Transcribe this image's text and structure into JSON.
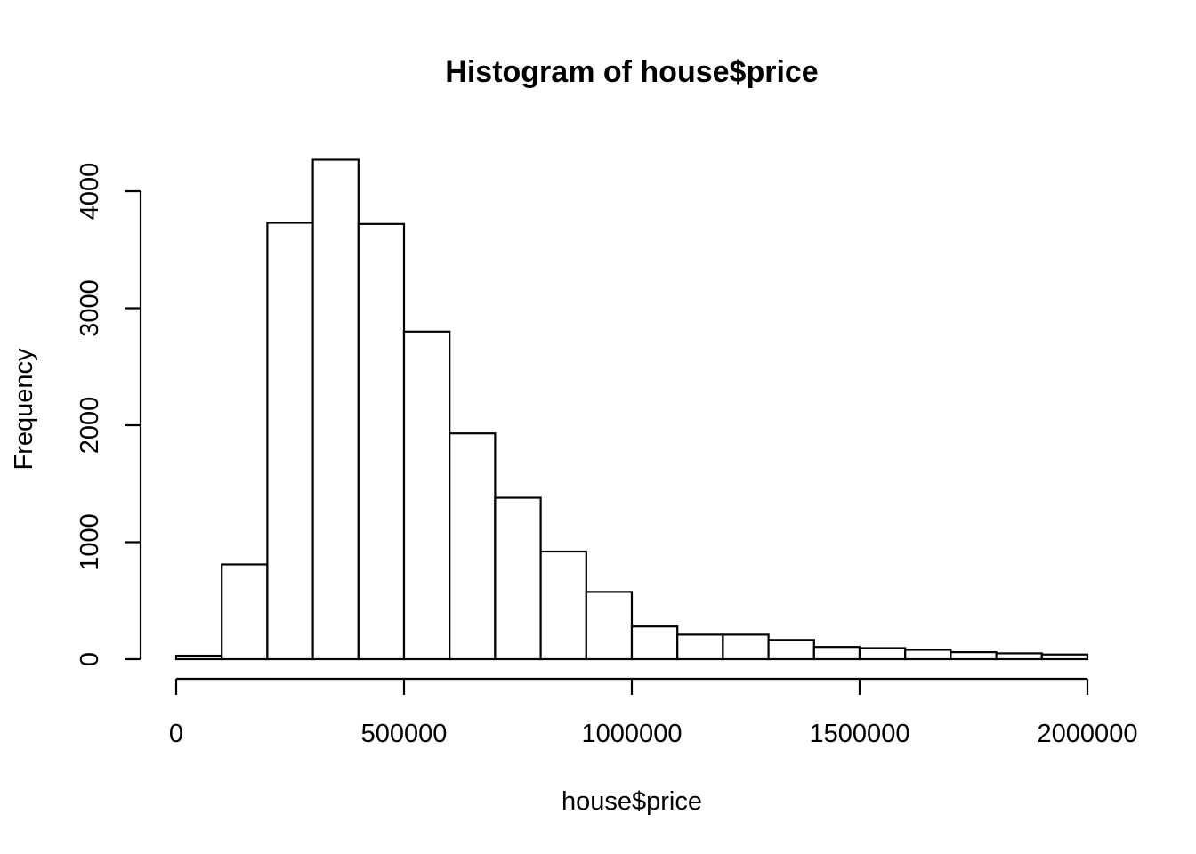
{
  "chart_data": {
    "type": "bar",
    "title": "Histogram of house$price",
    "xlabel": "house$price",
    "ylabel": "Frequency",
    "bin_width": 100000,
    "x_ticks": [
      0,
      500000,
      1000000,
      1500000,
      2000000
    ],
    "x_tick_labels": [
      "0",
      "500000",
      "1000000",
      "1500000",
      "2000000"
    ],
    "y_ticks": [
      0,
      1000,
      2000,
      3000,
      4000
    ],
    "y_tick_labels": [
      "0",
      "1000",
      "2000",
      "3000",
      "4000"
    ],
    "xlim": [
      0,
      2000000
    ],
    "ylim": [
      0,
      4300
    ],
    "bins": [
      {
        "start": 0,
        "end": 100000,
        "count": 30
      },
      {
        "start": 100000,
        "end": 200000,
        "count": 810
      },
      {
        "start": 200000,
        "end": 300000,
        "count": 3730
      },
      {
        "start": 300000,
        "end": 400000,
        "count": 4270
      },
      {
        "start": 400000,
        "end": 500000,
        "count": 3720
      },
      {
        "start": 500000,
        "end": 600000,
        "count": 2800
      },
      {
        "start": 600000,
        "end": 700000,
        "count": 1930
      },
      {
        "start": 700000,
        "end": 800000,
        "count": 1380
      },
      {
        "start": 800000,
        "end": 900000,
        "count": 920
      },
      {
        "start": 900000,
        "end": 1000000,
        "count": 575
      },
      {
        "start": 1000000,
        "end": 1100000,
        "count": 280
      },
      {
        "start": 1100000,
        "end": 1200000,
        "count": 210
      },
      {
        "start": 1200000,
        "end": 1300000,
        "count": 210
      },
      {
        "start": 1300000,
        "end": 1400000,
        "count": 165
      },
      {
        "start": 1400000,
        "end": 1500000,
        "count": 105
      },
      {
        "start": 1500000,
        "end": 1600000,
        "count": 95
      },
      {
        "start": 1600000,
        "end": 1700000,
        "count": 80
      },
      {
        "start": 1700000,
        "end": 1800000,
        "count": 60
      },
      {
        "start": 1800000,
        "end": 1900000,
        "count": 50
      },
      {
        "start": 1900000,
        "end": 2000000,
        "count": 40
      }
    ],
    "grid": false,
    "bar_fill": "#ffffff",
    "bar_stroke": "#000000"
  }
}
